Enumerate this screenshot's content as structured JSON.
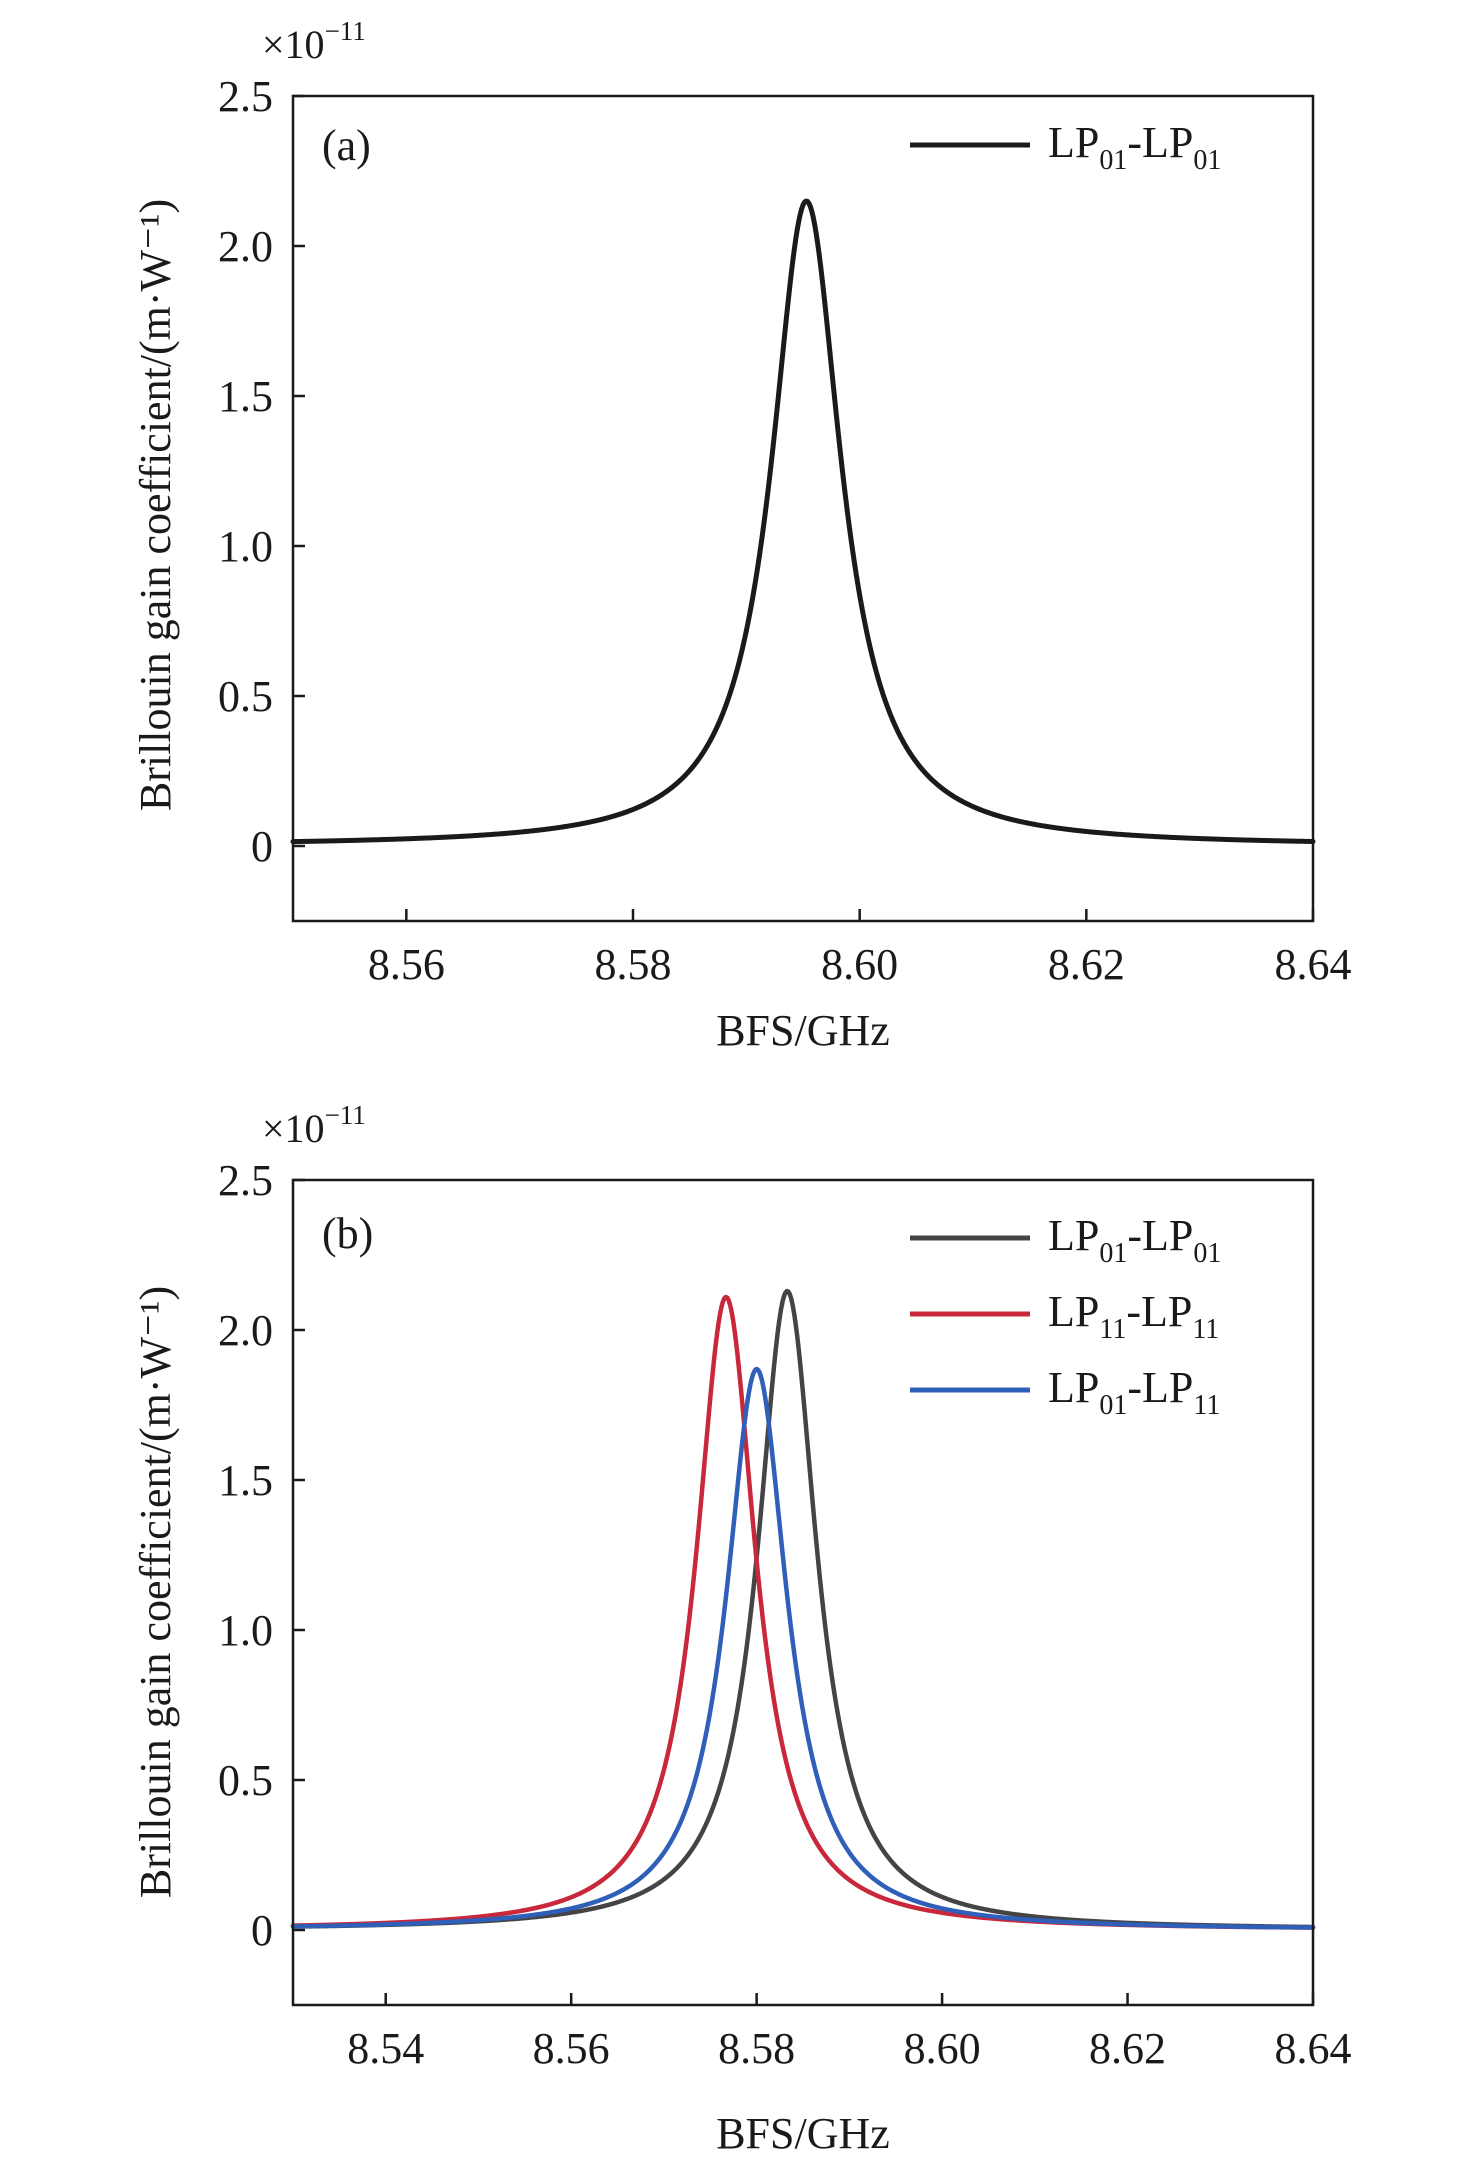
{
  "chart_data": [
    {
      "type": "line",
      "panel_label": "(a)",
      "xlabel": "BFS/GHz",
      "ylabel": "Brillouin gain coefficient/(m·W⁻¹)",
      "y_scale_text": "×10",
      "y_scale_exponent": "−11",
      "xlim": [
        8.55,
        8.64
      ],
      "ylim": [
        -0.25,
        2.5
      ],
      "xticks": [
        "8.56",
        "8.58",
        "8.60",
        "8.62",
        "8.64"
      ],
      "yticks": [
        "0",
        "0.5",
        "1.0",
        "1.5",
        "2.0",
        "2.5"
      ],
      "legend_position": "top-right",
      "series": [
        {
          "name": "LP01-LP01",
          "legend": {
            "a": "LP",
            "a_sub": "01",
            "b": "-LP",
            "b_sub": "01"
          },
          "color": "#1a1a1a",
          "model": "lorentzian",
          "peak_x": 8.5953,
          "peak_value": 2.15,
          "fwhm_ghz": 0.0075,
          "x_range": [
            8.55,
            8.64
          ]
        }
      ]
    },
    {
      "type": "line",
      "panel_label": "(b)",
      "xlabel": "BFS/GHz",
      "ylabel": "Brillouin gain coefficient/(m·W⁻¹)",
      "y_scale_text": "×10",
      "y_scale_exponent": "−11",
      "xlim": [
        8.53,
        8.64
      ],
      "ylim": [
        -0.25,
        2.5
      ],
      "xticks": [
        "8.54",
        "8.56",
        "8.58",
        "8.60",
        "8.62",
        "8.64"
      ],
      "yticks": [
        "0",
        "0.5",
        "1.0",
        "1.5",
        "2.0",
        "2.5"
      ],
      "legend_position": "top-right",
      "series": [
        {
          "name": "LP01-LP01",
          "legend": {
            "a": "LP",
            "a_sub": "01",
            "b": "-LP",
            "b_sub": "01"
          },
          "color": "#444444",
          "model": "lorentzian",
          "peak_x": 8.5833,
          "peak_value": 2.13,
          "fwhm_ghz": 0.0078,
          "x_range": [
            8.53,
            8.64
          ]
        },
        {
          "name": "LP11-LP11",
          "legend": {
            "a": "LP",
            "a_sub": "11",
            "b": "-LP",
            "b_sub": "11"
          },
          "color": "#c8283a",
          "model": "lorentzian",
          "peak_x": 8.5767,
          "peak_value": 2.11,
          "fwhm_ghz": 0.0078,
          "x_range": [
            8.53,
            8.64
          ]
        },
        {
          "name": "LP01-LP11",
          "legend": {
            "a": "LP",
            "a_sub": "01",
            "b": "-LP",
            "b_sub": "11"
          },
          "color": "#2f5fb8",
          "model": "lorentzian",
          "peak_x": 8.58,
          "peak_value": 1.87,
          "fwhm_ghz": 0.008,
          "x_range": [
            8.53,
            8.64
          ]
        }
      ]
    }
  ]
}
